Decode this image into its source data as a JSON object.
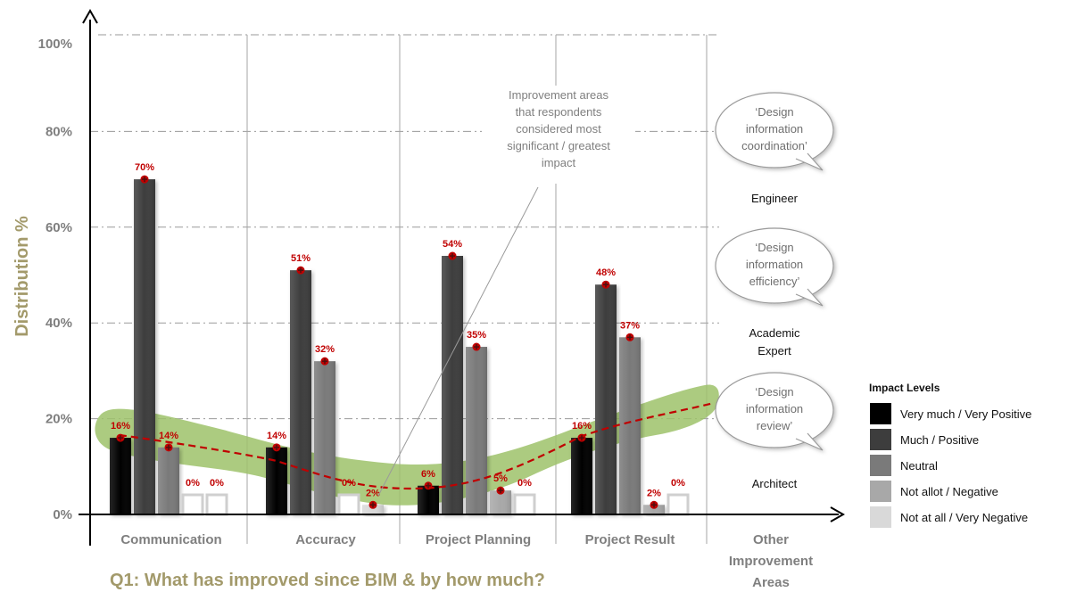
{
  "chart_data": {
    "type": "bar",
    "title": "Q1: What has improved since BIM & by how much?",
    "ylabel": "Distribution %",
    "xlabel": "",
    "ylim": [
      0,
      100
    ],
    "yticks": [
      "0%",
      "20%",
      "40%",
      "60%",
      "80%",
      "100%"
    ],
    "grid": true,
    "legend_position": "right",
    "legend_title": "Impact Levels",
    "categories": [
      "Communication",
      "Accuracy",
      "Project Planning",
      "Project Result"
    ],
    "extra_category": "Other Improvement Areas",
    "extra_category_lines": [
      "Other",
      "Improvement",
      "Areas"
    ],
    "series": [
      {
        "name": "Very much / Very Positive",
        "values": [
          16,
          14,
          6,
          16
        ],
        "labels": [
          "16%",
          "14%",
          "6%",
          "16%"
        ],
        "color": "#000000"
      },
      {
        "name": "Much / Positive",
        "values": [
          70,
          51,
          54,
          48
        ],
        "labels": [
          "70%",
          "51%",
          "54%",
          "48%"
        ],
        "color": "#3d3d3d"
      },
      {
        "name": "Neutral",
        "values": [
          14,
          32,
          35,
          37
        ],
        "labels": [
          "14%",
          "32%",
          "35%",
          "37%"
        ],
        "color": "#7a7a7a"
      },
      {
        "name": "Not allot / Negative",
        "values": [
          0,
          0,
          5,
          2
        ],
        "labels": [
          "0%",
          "0%",
          "5%",
          "2%"
        ],
        "color": "#a8a8a8"
      },
      {
        "name": "Not at all / Very Negative",
        "values": [
          0,
          2,
          0,
          0
        ],
        "labels": [
          "0%",
          "2%",
          "0%",
          "0%"
        ],
        "color": "#d9d9d9"
      }
    ],
    "trend_colors": {
      "line": "#c00000",
      "band": "#9dc26a"
    },
    "annotation": [
      "Improvement areas",
      "that respondents",
      "considered most",
      "significant / greatest",
      "impact"
    ],
    "bubbles": [
      {
        "lines": [
          "‘Design",
          "information",
          "coordination’"
        ],
        "role_lines": [
          "Engineer"
        ]
      },
      {
        "lines": [
          "‘Design",
          "information",
          "efficiency’"
        ],
        "role_lines": [
          "Academic",
          "Expert"
        ]
      },
      {
        "lines": [
          "‘Design",
          "information",
          "review’"
        ],
        "role_lines": [
          "Architect"
        ]
      }
    ]
  }
}
